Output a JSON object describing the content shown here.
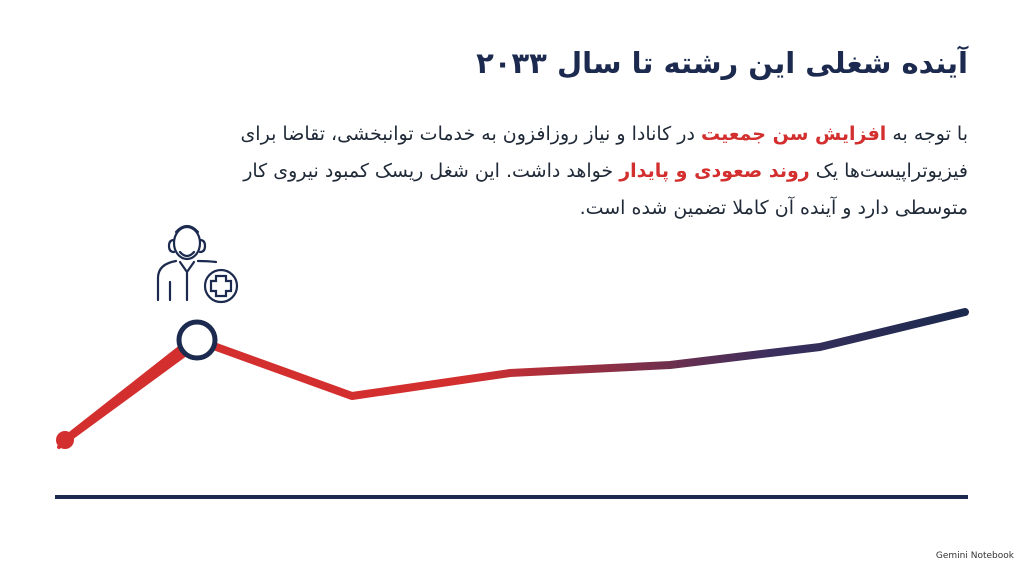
{
  "title": "آینده شغلی این رشته تا سال ۲۰۳۳",
  "paragraph": [
    {
      "text": "با توجه به ",
      "emphasis": false
    },
    {
      "text": "افزایش سن جمعیت",
      "emphasis": true
    },
    {
      "text": " در کانادا و نیاز روزافزون به خدمات توانبخشی، تقاضا برای فیزیوتراپیست‌ها یک ",
      "emphasis": false
    },
    {
      "text": "روند صعودی و پایدار",
      "emphasis": true
    },
    {
      "text": " خواهد داشت. این شغل ریسک کمبود نیروی کار متوسطی دارد و آینده آن کاملا تضمین شده است.",
      "emphasis": false
    }
  ],
  "footer": "Gemini Notebook"
}
